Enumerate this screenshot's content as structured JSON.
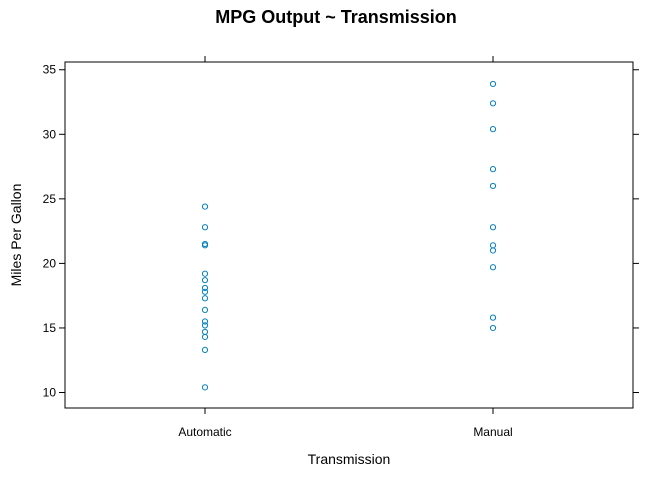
{
  "chart_data": {
    "type": "scatter",
    "title": "MPG Output ~ Transmission",
    "xlabel": "Transmission",
    "ylabel": "Miles Per Gallon",
    "categories": [
      "Automatic",
      "Manual"
    ],
    "ylim": [
      8.8,
      35.6
    ],
    "yticks": [
      10,
      15,
      20,
      25,
      30,
      35
    ],
    "grid": false,
    "legend": "none",
    "point_color": "#0080C0",
    "series": [
      {
        "category": "Automatic",
        "values": [
          24.4,
          22.8,
          21.5,
          21.4,
          19.2,
          18.7,
          18.1,
          17.8,
          17.3,
          16.4,
          15.5,
          15.2,
          14.7,
          14.3,
          13.3,
          10.4
        ]
      },
      {
        "category": "Manual",
        "values": [
          33.9,
          32.4,
          30.4,
          27.3,
          26.0,
          22.8,
          21.4,
          21.0,
          19.7,
          15.8,
          15.0
        ]
      }
    ]
  }
}
